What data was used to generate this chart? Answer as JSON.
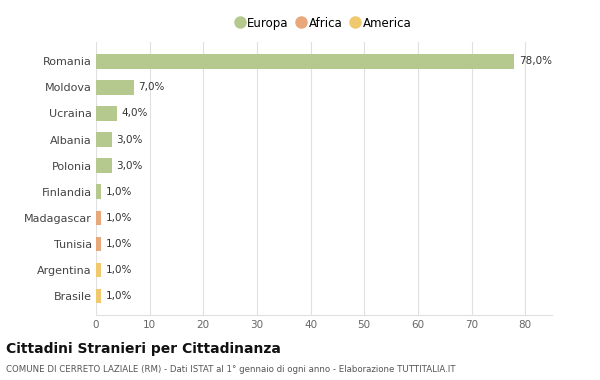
{
  "countries": [
    "Romania",
    "Moldova",
    "Ucraina",
    "Albania",
    "Polonia",
    "Finlandia",
    "Madagascar",
    "Tunisia",
    "Argentina",
    "Brasile"
  ],
  "values": [
    78.0,
    7.0,
    4.0,
    3.0,
    3.0,
    1.0,
    1.0,
    1.0,
    1.0,
    1.0
  ],
  "colors": [
    "#b5c98e",
    "#b5c98e",
    "#b5c98e",
    "#b5c98e",
    "#b5c98e",
    "#b5c98e",
    "#e8a87c",
    "#e8a87c",
    "#f0c96e",
    "#f0c96e"
  ],
  "labels": [
    "78,0%",
    "7,0%",
    "4,0%",
    "3,0%",
    "3,0%",
    "1,0%",
    "1,0%",
    "1,0%",
    "1,0%",
    "1,0%"
  ],
  "legend": [
    {
      "label": "Europa",
      "color": "#b5c98e"
    },
    {
      "label": "Africa",
      "color": "#e8a87c"
    },
    {
      "label": "America",
      "color": "#f0c96e"
    }
  ],
  "xlim": [
    0,
    85
  ],
  "xticks": [
    0,
    10,
    20,
    30,
    40,
    50,
    60,
    70,
    80
  ],
  "title": "Cittadini Stranieri per Cittadinanza",
  "subtitle": "COMUNE DI CERRETO LAZIALE (RM) - Dati ISTAT al 1° gennaio di ogni anno - Elaborazione TUTTITALIA.IT",
  "bg_color": "#ffffff",
  "grid_color": "#e0e0e0",
  "bar_height": 0.55,
  "figsize": [
    6.0,
    3.8
  ],
  "dpi": 100
}
